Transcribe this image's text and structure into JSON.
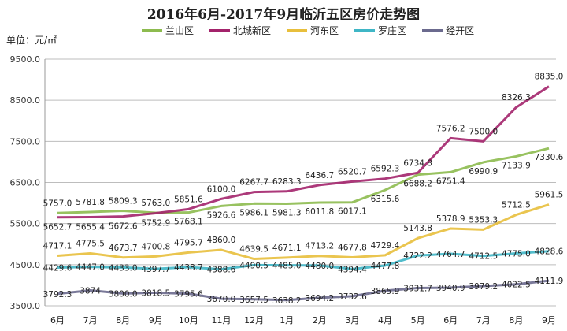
{
  "chart_data": {
    "type": "line",
    "title": "2016年6月-2017年9月临沂五区房价走势图",
    "unit_label": "单位：元/㎡",
    "categories": [
      "6月",
      "7月",
      "8月",
      "9月",
      "10月",
      "11月",
      "12月",
      "1月",
      "2月",
      "3月",
      "4月",
      "5月",
      "6月",
      "7月",
      "8月",
      "9月"
    ],
    "yticks": [
      "3500.0",
      "4500.0",
      "5500.0",
      "6500.0",
      "7500.0",
      "8500.0",
      "9500.0"
    ],
    "ylim": [
      3500,
      9500
    ],
    "grid": true,
    "legend_position": "top",
    "series": [
      {
        "name": "兰山区",
        "color": "#8dbb4f",
        "values": [
          5757.0,
          5781.8,
          5809.3,
          5763.0,
          5768.1,
          5926.6,
          5986.1,
          5981.3,
          6011.8,
          6017.1,
          6315.6,
          6688.2,
          6751.4,
          6990.9,
          7133.9,
          7330.6
        ],
        "labels": [
          "5757.0",
          "5781.8",
          "5809.3",
          "5763.0",
          "5768.1",
          "5926.6",
          "5986.1",
          "5981.3",
          "6011.8",
          "6017.1",
          "6315.6",
          "6688.2",
          "6751.4",
          "6990.9",
          "7133.9",
          "7330.6"
        ]
      },
      {
        "name": "北城新区",
        "color": "#a3236b",
        "values": [
          5652.7,
          5655.4,
          5672.6,
          5752.9,
          5851.6,
          6100.0,
          6267.7,
          6283.3,
          6436.7,
          6520.7,
          6592.3,
          6734.8,
          7576.2,
          7500.0,
          8326.3,
          8835.0
        ],
        "labels": [
          "5652.7",
          "5655.4",
          "5672.6",
          "5752.9",
          "5851.6",
          "6100.0",
          "6267.7",
          "6283.3",
          "6436.7",
          "6520.7",
          "6592.3",
          "6734.8",
          "7576.2",
          "7500.0",
          "8326.3",
          "8835.0"
        ]
      },
      {
        "name": "河东区",
        "color": "#e8bf3c",
        "values": [
          4717.1,
          4775.5,
          4673.7,
          4700.8,
          4795.7,
          4860.0,
          4639.5,
          4671.1,
          4713.2,
          4677.8,
          4729.4,
          5143.8,
          5378.9,
          5353.3,
          5712.5,
          5961.5
        ],
        "labels": [
          "4717.1",
          "4775.5",
          "4673.7",
          "4700.8",
          "4795.7",
          "4860.0",
          "4639.5",
          "4671.1",
          "4713.2",
          "4677.8",
          "4729.4",
          "5143.8",
          "5378.9",
          "5353.3",
          "5712.5",
          "5961.5"
        ]
      },
      {
        "name": "罗庄区",
        "color": "#3fb6c6",
        "values": [
          4429.6,
          4447.0,
          4433.0,
          4397.7,
          4438.7,
          4388.6,
          4490.5,
          4485.0,
          4480.0,
          4394.4,
          4477.8,
          4722.2,
          4764.7,
          4712.5,
          4775.0,
          4828.6
        ],
        "labels": [
          "4429.6",
          "4447.0",
          "4433.0",
          "4397.7",
          "4438.7",
          "4388.6",
          "4490.5",
          "4485.0",
          "4480.0",
          "4394.4",
          "4477.8",
          "4722.2",
          "4764.7",
          "4712.5",
          "4775.0",
          "4828.6"
        ]
      },
      {
        "name": "经开区",
        "color": "#6b6a8e",
        "values": [
          3792.3,
          3874,
          3800.0,
          3818.5,
          3795.6,
          3670.0,
          3657.5,
          3638.2,
          3694.2,
          3732.6,
          3865.9,
          3931.7,
          3940.9,
          3979.2,
          4022.5,
          4111.9
        ],
        "labels": [
          "3792.3",
          "3874",
          "3800.0",
          "3818.5",
          "3795.6",
          "3670.0",
          "3657.5",
          "3638.2",
          "3694.2",
          "3732.6",
          "3865.9",
          "3931.7",
          "3940.9",
          "3979.2",
          "4022.5",
          "4111.9"
        ]
      }
    ]
  }
}
